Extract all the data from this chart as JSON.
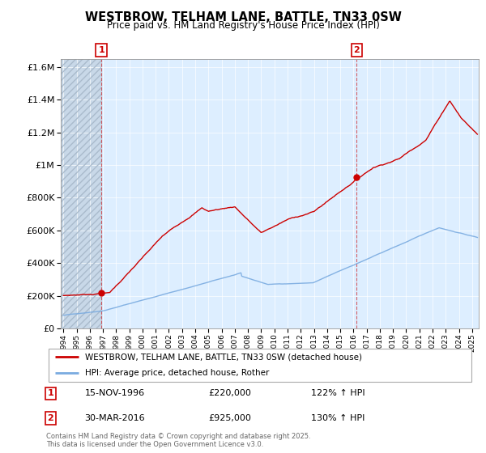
{
  "title": "WESTBROW, TELHAM LANE, BATTLE, TN33 0SW",
  "subtitle": "Price paid vs. HM Land Registry's House Price Index (HPI)",
  "legend_line1": "WESTBROW, TELHAM LANE, BATTLE, TN33 0SW (detached house)",
  "legend_line2": "HPI: Average price, detached house, Rother",
  "annotation1_date": "15-NOV-1996",
  "annotation1_price": "£220,000",
  "annotation1_hpi": "122% ↑ HPI",
  "annotation2_date": "30-MAR-2016",
  "annotation2_price": "£925,000",
  "annotation2_hpi": "130% ↑ HPI",
  "footer": "Contains HM Land Registry data © Crown copyright and database right 2025.\nThis data is licensed under the Open Government Licence v3.0.",
  "red_color": "#cc0000",
  "blue_color": "#7aabe0",
  "chart_bg": "#ddeeff",
  "background_color": "#ffffff",
  "sale1_x": 1996.88,
  "sale1_y": 220000,
  "sale2_x": 2016.25,
  "sale2_y": 925000,
  "ylim": [
    0,
    1650000
  ],
  "xlim_start": 1993.8,
  "xlim_end": 2025.5
}
